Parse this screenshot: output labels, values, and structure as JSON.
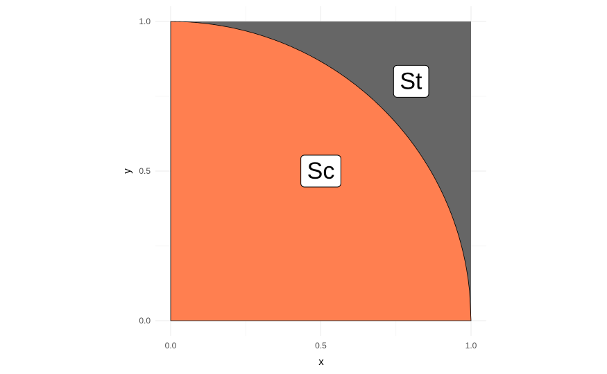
{
  "chart_data": {
    "type": "area",
    "title": "",
    "xlabel": "x",
    "ylabel": "y",
    "xlim": [
      0,
      1
    ],
    "ylim": [
      0,
      1
    ],
    "x_ticks": [
      0,
      0.5,
      1
    ],
    "y_ticks": [
      0,
      0.5,
      1
    ],
    "x_tick_labels": [
      "0.0",
      "0.5",
      "1.0"
    ],
    "y_tick_labels": [
      "0.0",
      "0.5",
      "1.0"
    ],
    "grid": true,
    "regions": [
      {
        "label": "Sc",
        "description_curve": "y = sqrt(1 - x^2)",
        "color": "#ff7f50",
        "label_position": {
          "x": 0.5,
          "y": 0.5
        }
      },
      {
        "label": "St",
        "color": "#666666",
        "label_position": {
          "x": 0.8,
          "y": 0.8
        }
      }
    ]
  }
}
